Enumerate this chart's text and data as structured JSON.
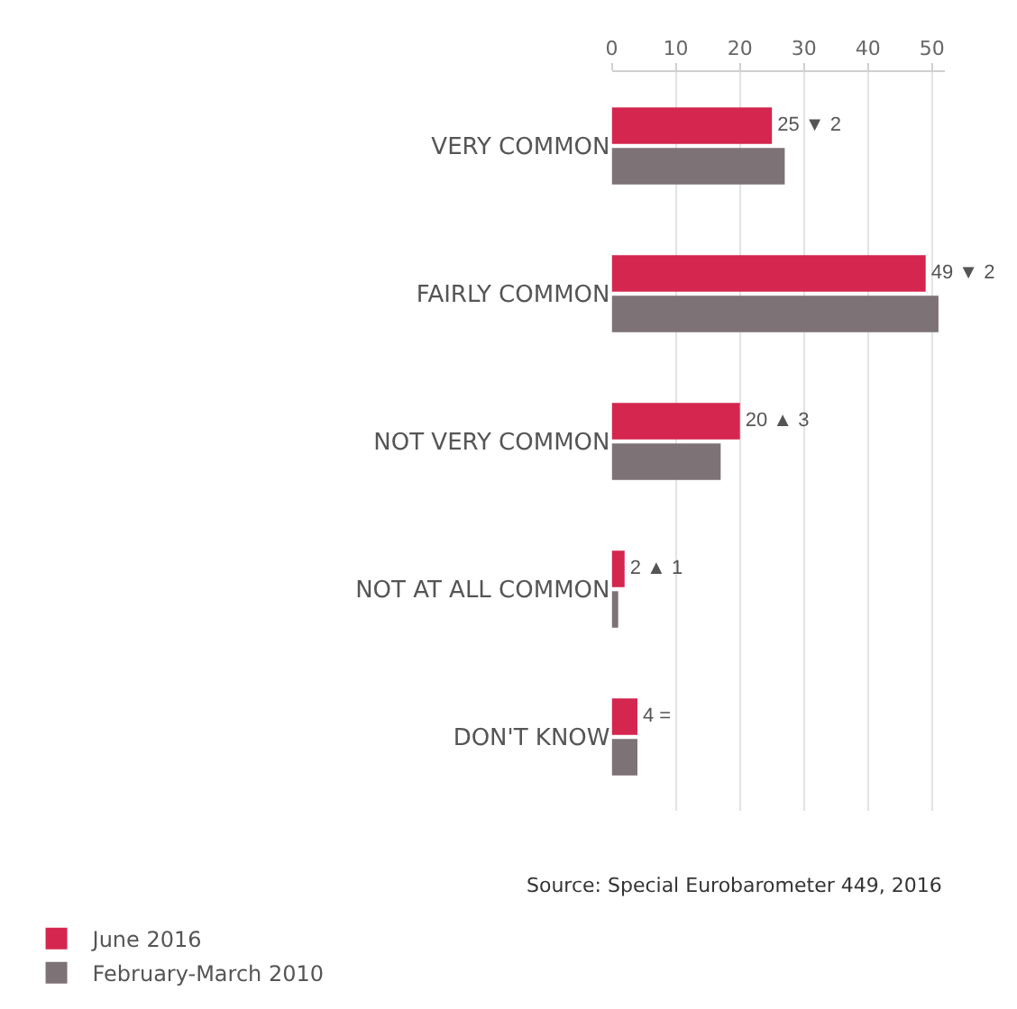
{
  "chart_data": {
    "type": "bar",
    "orientation": "horizontal",
    "categories": [
      "VERY COMMON",
      "FAIRLY COMMON",
      "NOT VERY COMMON",
      "NOT AT ALL COMMON",
      "DON'T KNOW"
    ],
    "series": [
      {
        "name": "June 2016",
        "color": "#d4264f",
        "values": [
          25,
          49,
          20,
          2,
          4
        ],
        "value_labels": [
          "25 ▼ 2",
          "49 ▼ 2",
          "20 ▲ 3",
          "2 ▲ 1",
          "4 ="
        ]
      },
      {
        "name": "February-March 2010",
        "color": "#7d7275",
        "values": [
          27,
          51,
          17,
          1,
          4
        ]
      }
    ],
    "xlim": [
      0,
      52
    ],
    "xticks": [
      0,
      10,
      20,
      30,
      40,
      50
    ],
    "grid": "x",
    "legend": "bottom left",
    "annotations": [
      "Source: Special Eurobarometer 449, 2016"
    ]
  }
}
